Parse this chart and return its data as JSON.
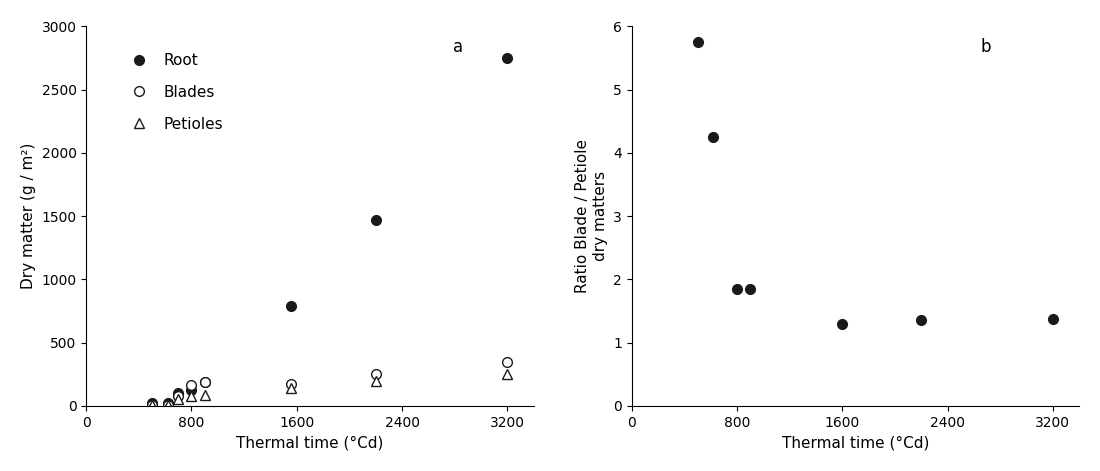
{
  "panel_a": {
    "title": "a",
    "xlabel": "Thermal time (°Cd)",
    "ylabel": "Dry matter (g / m²)",
    "xlim": [
      0,
      3400
    ],
    "ylim": [
      0,
      3000
    ],
    "xticks": [
      0,
      800,
      1600,
      2400,
      3200
    ],
    "yticks": [
      0,
      500,
      1000,
      1500,
      2000,
      2500,
      3000
    ],
    "root": {
      "x": [
        500,
        620,
        700,
        800,
        900,
        1560,
        2200,
        3200
      ],
      "y": [
        20,
        20,
        100,
        125,
        190,
        790,
        1470,
        2750
      ],
      "label": "Root"
    },
    "blades": {
      "x": [
        500,
        620,
        700,
        800,
        900,
        1560,
        2200,
        3200
      ],
      "y": [
        10,
        10,
        75,
        165,
        185,
        170,
        255,
        350
      ],
      "label": "Blades"
    },
    "petioles": {
      "x": [
        500,
        620,
        700,
        800,
        900,
        1560,
        2200,
        3200
      ],
      "y": [
        8,
        5,
        55,
        75,
        85,
        145,
        195,
        250
      ],
      "label": "Petioles"
    }
  },
  "panel_b": {
    "title": "b",
    "xlabel": "Thermal time (°Cd)",
    "ylabel": "Ratio Blade / Petiole\ndry matters",
    "xlim": [
      0,
      3400
    ],
    "ylim": [
      0,
      6
    ],
    "xticks": [
      0,
      800,
      1600,
      2400,
      3200
    ],
    "yticks": [
      0,
      1,
      2,
      3,
      4,
      5,
      6
    ],
    "ratio": {
      "x": [
        500,
        620,
        800,
        900,
        1600,
        2200,
        3200
      ],
      "y": [
        5.75,
        4.25,
        1.85,
        1.85,
        1.3,
        1.35,
        1.37
      ]
    }
  },
  "marker_size": 7,
  "font_size": 11,
  "tick_font_size": 10,
  "label_font_size": 11,
  "background_color": "#ffffff",
  "dot_color": "#1a1a1a"
}
